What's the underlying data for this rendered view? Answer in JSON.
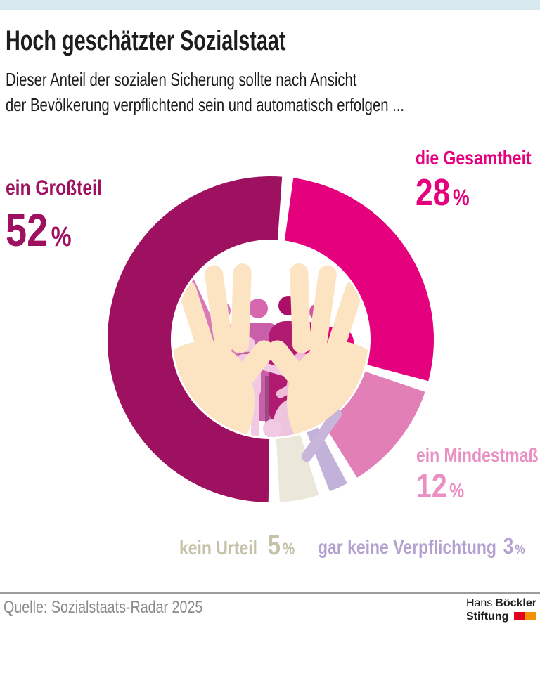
{
  "header": {
    "topbar_color": "#d7e9ef",
    "title": "Hoch geschätzter Sozialstaat",
    "subtitle_line1": "Dieser Anteil der sozialen Sicherung sollte nach Ansicht",
    "subtitle_line2": "der Bevölkerung verpflichtend sein und automatisch erfolgen  ..."
  },
  "chart_data": {
    "type": "pie",
    "subtype": "donut",
    "title": "Hoch geschätzter Sozialstaat",
    "subtitle": "Dieser Anteil der sozialen Sicherung sollte nach Ansicht der Bevölkerung verpflichtend sein und automatisch erfolgen ...",
    "unit": "%",
    "total": 100,
    "direction": "clockwise",
    "start_angle_deg": 6,
    "gap_deg": 4,
    "inner_radius_ratio": 0.61,
    "legend_position": "callout-labels-around-donut",
    "slices": [
      {
        "label": "die Gesamtheit",
        "value": 28,
        "value_label": "28",
        "unit": "%",
        "color": "#e5007d",
        "label_color": "#e5007d"
      },
      {
        "label": "ein Mindestmaß",
        "value": 12,
        "value_label": "12",
        "unit": "%",
        "color": "#e27fb6",
        "label_color": "#e98fc3"
      },
      {
        "label": "gar keine Verpflichtung",
        "value": 3,
        "value_label": "3",
        "unit": "%",
        "color": "#c2b1d8",
        "label_color": "#b4a1d0"
      },
      {
        "label": "kein Urteil",
        "value": 5,
        "value_label": "5",
        "unit": "%",
        "color": "#ebe7da",
        "label_color": "#c5c2a9"
      },
      {
        "label": "ein Großteil",
        "value": 52,
        "value_label": "52",
        "unit": "%",
        "color": "#9e1160",
        "label_color": "#9e1160"
      }
    ]
  },
  "illustration": {
    "name": "people-held-by-open-hands",
    "description": "Group of people in pink tones (incl. wheelchair user) held by two open beige hands inside the donut hole",
    "hand_color": "#fce3c2"
  },
  "footer": {
    "source": "Quelle: Sozialstaats-Radar 2025",
    "logo": {
      "name_regular": "Hans",
      "name_bold": "Böckler",
      "line2_bold": "Stiftung",
      "square_red": "#e3001b",
      "square_orange": "#f39200"
    }
  }
}
